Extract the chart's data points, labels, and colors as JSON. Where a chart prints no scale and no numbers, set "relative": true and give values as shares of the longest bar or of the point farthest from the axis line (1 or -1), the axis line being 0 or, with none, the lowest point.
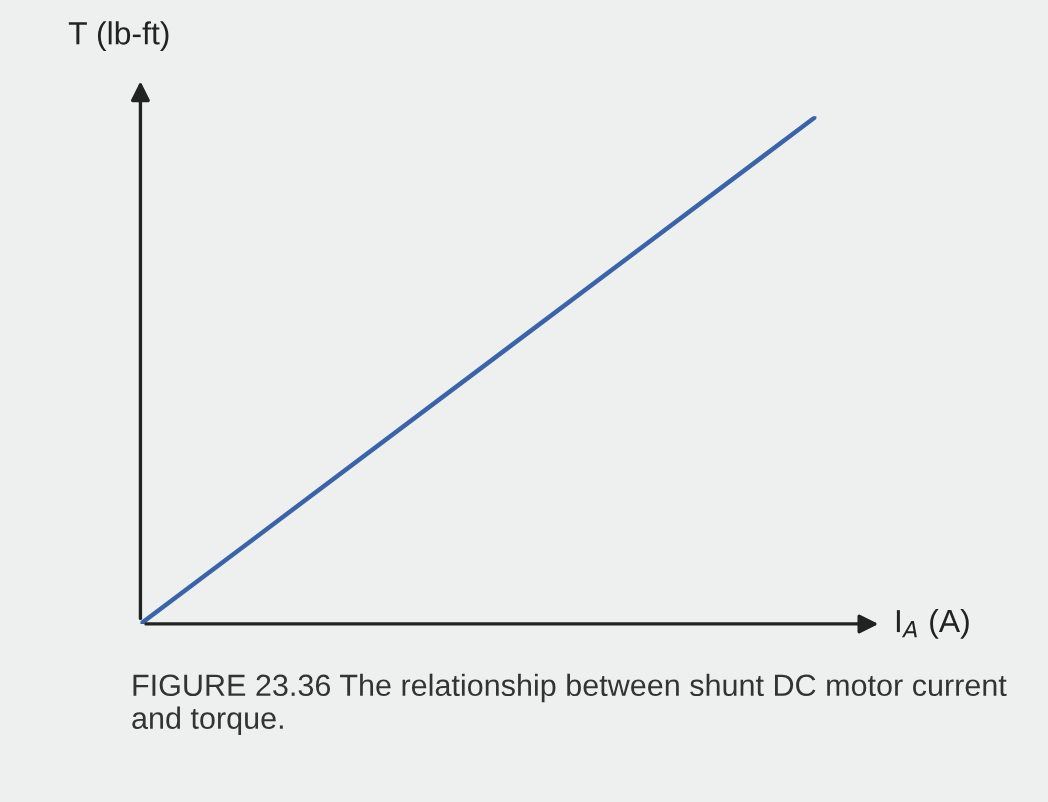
{
  "chart_data": {
    "type": "line",
    "relative": true,
    "ylabel": "T (lb-ft)",
    "xlabel": "I$_{A}$ (A)",
    "categories": [
      null,
      null
    ],
    "series": [
      {
        "color": "#3b63a8",
        "values": [
          0,
          1
        ]
      }
    ],
    "annotations": [
      "FIGURE 23.36 The relationship between shunt DC motor current and torque."
    ]
  }
}
